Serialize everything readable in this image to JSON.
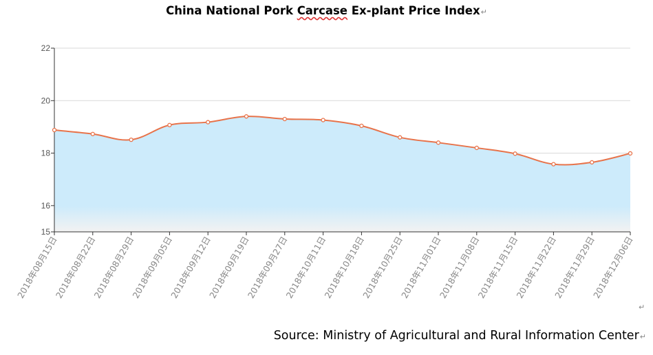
{
  "title": {
    "before": "China National Pork ",
    "highlight": "Carcase",
    "after": " Ex-plant Price Index",
    "mark": "↵"
  },
  "source": {
    "text": "Source: Ministry of Agricultural and Rural Information Center",
    "mark": "↵"
  },
  "end_mark": "↵",
  "colors": {
    "line": "#e8734a",
    "fill_top": "#cdebfb",
    "fill_bottom": "#f2f2f2",
    "grid": "#d8d8d8",
    "axis": "#333333"
  },
  "chart_data": {
    "type": "area",
    "title": "China National Pork Carcase Ex-plant Price Index",
    "xlabel": "",
    "ylabel": "",
    "x": [
      "2018年08月15日",
      "2018年08月22日",
      "2018年08月29日",
      "2018年09月05日",
      "2018年09月12日",
      "2018年09月19日",
      "2018年09月27日",
      "2018年10月11日",
      "2018年10月18日",
      "2018年10月25日",
      "2018年11月01日",
      "2018年11月08日",
      "2018年11月15日",
      "2018年11月22日",
      "2018年11月29日",
      "2018年12月06日"
    ],
    "series": [
      {
        "values": [
          18.88,
          18.73,
          18.51,
          19.07,
          19.18,
          19.4,
          19.3,
          19.26,
          19.04,
          18.6,
          18.4,
          18.2,
          17.98,
          17.58,
          17.65,
          17.99
        ]
      }
    ],
    "yticks": [
      15,
      16,
      18,
      20,
      22
    ],
    "ylim": [
      15,
      22
    ],
    "grid": true,
    "smooth": true,
    "legend": "none"
  }
}
